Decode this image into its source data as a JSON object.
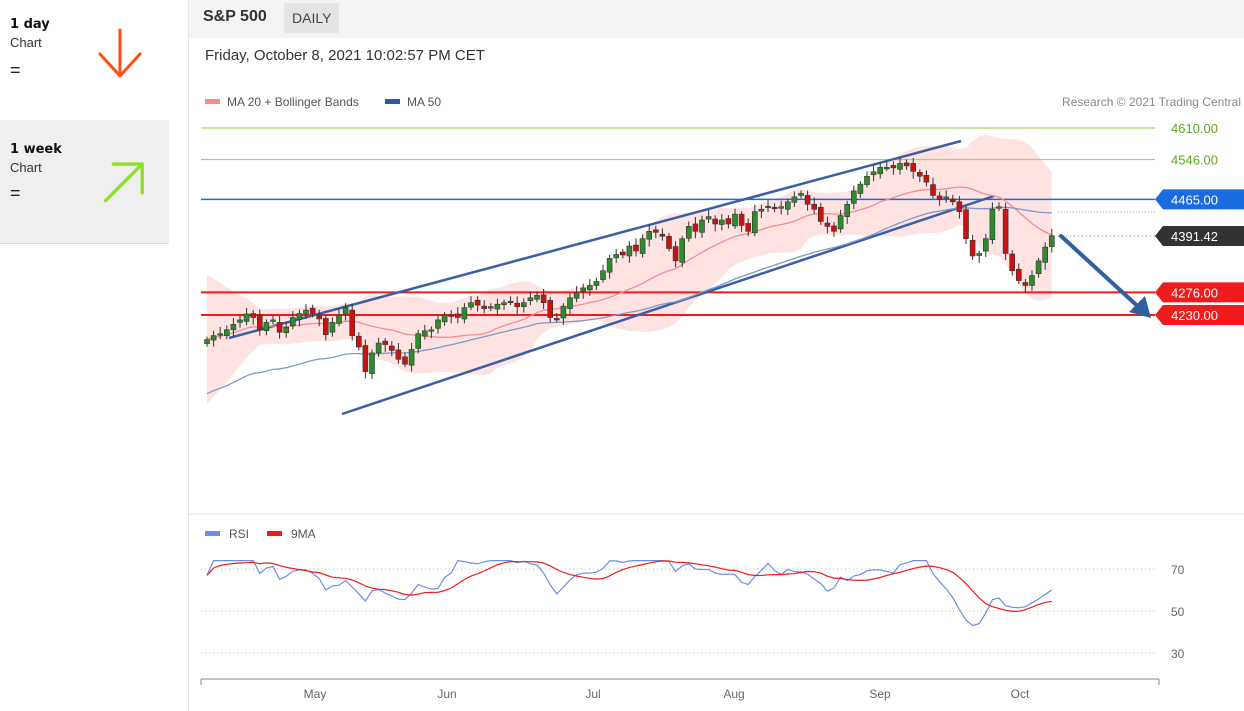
{
  "sidebar": {
    "cards": [
      {
        "title": "1 day",
        "subtitle": "Chart",
        "signal": "=",
        "arrow_icon": "arrow-down-icon",
        "color": "#ff4e14"
      },
      {
        "title": "1 week",
        "subtitle": "Chart",
        "signal": "=",
        "arrow_icon": "arrow-up-right-icon",
        "color": "#8ee024"
      }
    ]
  },
  "header": {
    "symbol": "S&P 500",
    "period": "DAILY"
  },
  "timestamp": "Friday, October 8, 2021 10:02:57 PM CET",
  "copyright": "Research © 2021 Trading Central",
  "chart_data": {
    "type": "candlestick",
    "legend": [
      {
        "name": "MA 20 + Bollinger Bands",
        "color": "#f58c8c"
      },
      {
        "name": "MA 50",
        "color": "#2d5a9e"
      }
    ],
    "x_ticks": [
      "May",
      "Jun",
      "Jul",
      "Aug",
      "Sep",
      "Oct"
    ],
    "y_range": [
      4010,
      4680
    ],
    "current_price": "4391.42",
    "levels": [
      {
        "value": 4610,
        "label": "4610.00",
        "kind": "resistance",
        "color": "#a6d36f"
      },
      {
        "value": 4546,
        "label": "4546.00",
        "kind": "resistance",
        "color": "#a6d36f"
      },
      {
        "value": 4465,
        "label": "4465.00",
        "kind": "pivot",
        "color": "#1a6be0"
      },
      {
        "value": 4276,
        "label": "4276.00",
        "kind": "support",
        "color": "#ee1c1c"
      },
      {
        "value": 4230,
        "label": "4230.00",
        "kind": "support",
        "color": "#ee1c1c"
      }
    ],
    "trend": "down",
    "rsi": {
      "legend": [
        {
          "name": "RSI",
          "color": "#6a8fe0"
        },
        {
          "name": "9MA",
          "color": "#ee1c1c"
        }
      ],
      "y_ticks": [
        "70",
        "50",
        "30"
      ],
      "y_range": [
        20,
        80
      ]
    },
    "series": {
      "close": [
        4180,
        4188,
        4192,
        4200,
        4211,
        4220,
        4232,
        4225,
        4200,
        4215,
        4220,
        4195,
        4205,
        4225,
        4233,
        4240,
        4233,
        4222,
        4190,
        4215,
        4230,
        4245,
        4188,
        4165,
        4115,
        4153,
        4173,
        4170,
        4158,
        4140,
        4130,
        4160,
        4192,
        4198,
        4200,
        4220,
        4230,
        4228,
        4225,
        4245,
        4255,
        4250,
        4243,
        4247,
        4252,
        4255,
        4258,
        4247,
        4255,
        4265,
        4270,
        4255,
        4225,
        4222,
        4248,
        4265,
        4275,
        4285,
        4290,
        4298,
        4320,
        4345,
        4353,
        4352,
        4370,
        4360,
        4385,
        4400,
        4398,
        4390,
        4365,
        4340,
        4385,
        4410,
        4400,
        4423,
        4430,
        4415,
        4423,
        4415,
        4435,
        4412,
        4400,
        4440,
        4445,
        4451,
        4447,
        4450,
        4460,
        4470,
        4477,
        4455,
        4445,
        4420,
        4410,
        4400,
        4432,
        4455,
        4482,
        4496,
        4512,
        4521,
        4530,
        4530,
        4529,
        4538,
        4533,
        4522,
        4512,
        4500,
        4473,
        4465,
        4470,
        4460,
        4440,
        4385,
        4350,
        4355,
        4385,
        4445,
        4450,
        4355,
        4320,
        4300,
        4290,
        4310,
        4340,
        4368,
        4391
      ]
    }
  }
}
